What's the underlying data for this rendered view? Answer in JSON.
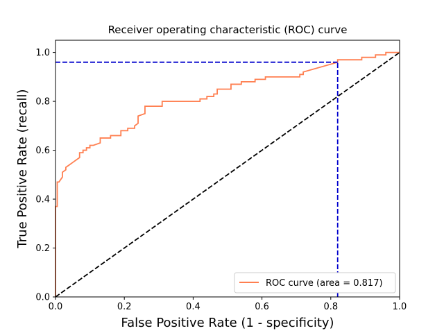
{
  "chart_data": {
    "type": "line",
    "title": "Receiver operating characteristic (ROC) curve",
    "xlabel": "False Positive Rate (1 - specificity)",
    "ylabel": "True Positive Rate (recall)",
    "xlim": [
      0.0,
      1.0
    ],
    "ylim": [
      0.0,
      1.05
    ],
    "xticks": [
      "0.0",
      "0.2",
      "0.4",
      "0.6",
      "0.8",
      "1.0"
    ],
    "yticks": [
      "0.0",
      "0.2",
      "0.4",
      "0.6",
      "0.8",
      "1.0"
    ],
    "legend_position": "lower-right",
    "grid": false,
    "series": [
      {
        "name": "ROC curve (area = 0.817)",
        "color": "#ff7f50",
        "style": "solid",
        "x": [
          0.0,
          0.0,
          0.005,
          0.005,
          0.01,
          0.01,
          0.02,
          0.02,
          0.03,
          0.03,
          0.04,
          0.05,
          0.06,
          0.07,
          0.07,
          0.08,
          0.08,
          0.09,
          0.09,
          0.1,
          0.1,
          0.11,
          0.13,
          0.13,
          0.16,
          0.16,
          0.19,
          0.19,
          0.21,
          0.21,
          0.23,
          0.23,
          0.24,
          0.24,
          0.26,
          0.26,
          0.31,
          0.31,
          0.42,
          0.42,
          0.44,
          0.44,
          0.46,
          0.46,
          0.47,
          0.47,
          0.51,
          0.51,
          0.54,
          0.54,
          0.58,
          0.58,
          0.61,
          0.61,
          0.63,
          0.63,
          0.71,
          0.71,
          0.72,
          0.72,
          0.82,
          0.82,
          0.89,
          0.89,
          0.93,
          0.93,
          0.96,
          0.96,
          1.0,
          1.0
        ],
        "y": [
          0.0,
          0.37,
          0.37,
          0.47,
          0.47,
          0.47,
          0.49,
          0.51,
          0.52,
          0.53,
          0.54,
          0.55,
          0.56,
          0.57,
          0.59,
          0.59,
          0.6,
          0.6,
          0.61,
          0.61,
          0.62,
          0.62,
          0.63,
          0.65,
          0.65,
          0.66,
          0.66,
          0.68,
          0.68,
          0.69,
          0.69,
          0.7,
          0.71,
          0.74,
          0.75,
          0.78,
          0.78,
          0.8,
          0.8,
          0.81,
          0.81,
          0.82,
          0.82,
          0.83,
          0.83,
          0.85,
          0.85,
          0.87,
          0.87,
          0.88,
          0.88,
          0.89,
          0.89,
          0.9,
          0.9,
          0.9,
          0.9,
          0.91,
          0.91,
          0.92,
          0.96,
          0.97,
          0.97,
          0.98,
          0.98,
          0.99,
          0.99,
          1.0,
          1.0,
          1.0
        ]
      },
      {
        "color": "#000000",
        "style": "dashed",
        "x": [
          0.0,
          1.0
        ],
        "y": [
          0.0,
          1.0
        ]
      },
      {
        "color": "#0000cd",
        "style": "dashed",
        "x": [
          0.0,
          0.82
        ],
        "y": [
          0.96,
          0.96
        ]
      },
      {
        "color": "#0000cd",
        "style": "dashed",
        "x": [
          0.82,
          0.82
        ],
        "y": [
          0.0,
          0.96
        ]
      }
    ]
  }
}
